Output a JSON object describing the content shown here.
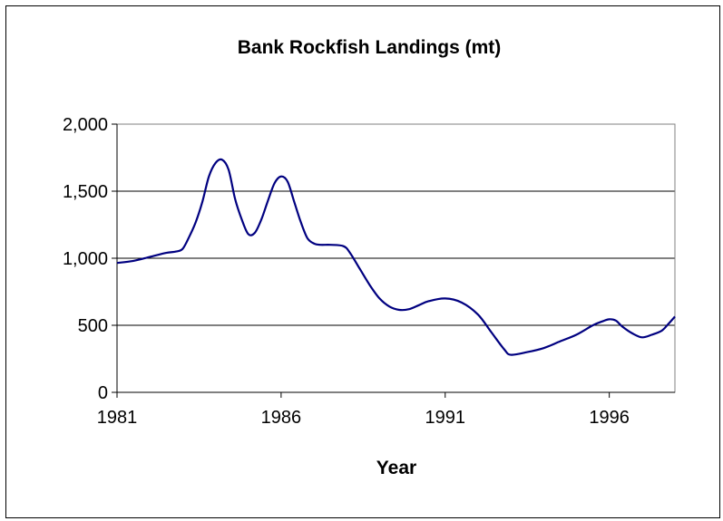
{
  "chart_data": {
    "type": "line",
    "title": "Bank Rockfish Landings (mt)",
    "xlabel": "Year",
    "ylabel": "",
    "ylim": [
      0,
      2000
    ],
    "xlim": [
      1981,
      1998
    ],
    "grid": true,
    "legend": "none",
    "x_ticks": [
      1981,
      1986,
      1991,
      1996
    ],
    "x_tick_labels": [
      "1981",
      "1986",
      "1991",
      "1996"
    ],
    "y_ticks": [
      0,
      500,
      1000,
      1500,
      2000
    ],
    "y_tick_labels": [
      "0",
      "500",
      "1,000",
      "1,500",
      "2,000"
    ],
    "colors": {
      "line": "#000080",
      "grid": "#000000",
      "plot_border": "#808080"
    },
    "series": [
      {
        "x": [
          1981,
          1981.5,
          1982,
          1982.5,
          1982.8,
          1983.0,
          1983.2,
          1983.4,
          1983.6,
          1983.8,
          1984.0,
          1984.2,
          1984.4,
          1984.6,
          1984.8,
          1985.0,
          1985.2,
          1985.4,
          1985.6,
          1985.8,
          1986.0,
          1986.2,
          1986.4,
          1986.6,
          1986.8,
          1987.0,
          1987.2,
          1987.5,
          1987.9,
          1988.1,
          1988.4,
          1988.7,
          1989.0,
          1989.3,
          1989.6,
          1989.9,
          1990.2,
          1990.5,
          1991.0,
          1991.5,
          1992.0,
          1992.4,
          1992.8,
          1993.0,
          1993.5,
          1994.0,
          1994.5,
          1995.0,
          1995.5,
          1995.8,
          1996.0,
          1996.2,
          1996.4,
          1996.7,
          1997.0,
          1997.3,
          1997.6,
          1997.8,
          1998.0
        ],
        "y": [
          965,
          980,
          1010,
          1040,
          1050,
          1070,
          1160,
          1270,
          1420,
          1610,
          1710,
          1735,
          1660,
          1440,
          1290,
          1180,
          1190,
          1290,
          1430,
          1560,
          1610,
          1570,
          1420,
          1270,
          1150,
          1110,
          1100,
          1100,
          1090,
          1040,
          920,
          800,
          700,
          640,
          615,
          620,
          650,
          680,
          700,
          670,
          580,
          450,
          320,
          280,
          300,
          330,
          380,
          430,
          500,
          530,
          545,
          535,
          490,
          440,
          410,
          430,
          460,
          510,
          565
        ]
      }
    ]
  }
}
